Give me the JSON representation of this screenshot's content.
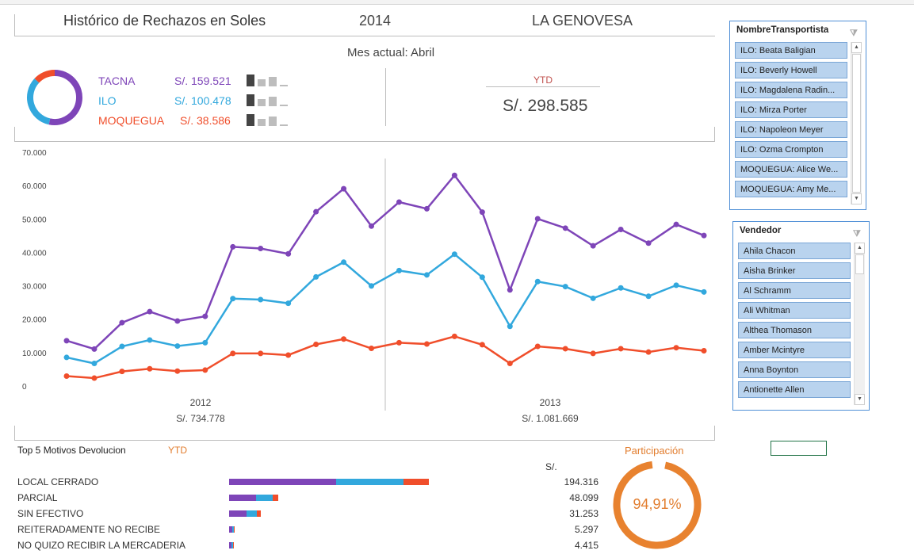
{
  "header": {
    "title": "Histórico de Rechazos en Soles",
    "year": "2014",
    "company": "LA GENOVESA"
  },
  "current_month": "Mes actual: Abril",
  "regions": [
    {
      "name": "TACNA",
      "value": "S/. 159.521",
      "color": "#7e45b8"
    },
    {
      "name": "ILO",
      "value": "S/. 100.478",
      "color": "#32a8dd"
    },
    {
      "name": "MOQUEGUA",
      "value": "S/. 38.586",
      "color": "#f04e2b"
    }
  ],
  "ytd": {
    "label": "YTD",
    "value": "S/. 298.585"
  },
  "chart_data": {
    "type": "line",
    "ylim": [
      0,
      70000
    ],
    "y_ticks": [
      "70.000",
      "60.000",
      "50.000",
      "40.000",
      "30.000",
      "20.000",
      "10.000",
      "0"
    ],
    "groups": [
      {
        "year": "2012",
        "total": "S/. 734.778"
      },
      {
        "year": "2013",
        "total": "S/. 1.081.669"
      }
    ],
    "series": [
      {
        "name": "TACNA",
        "color": "#7e45b8",
        "values": [
          13800,
          11300,
          19200,
          22500,
          19700,
          21100,
          41900,
          41400,
          39800,
          52400,
          59300,
          48100,
          55300,
          53300,
          63300,
          52300,
          29000,
          50300,
          47500,
          42200,
          47100,
          43000,
          48600,
          45300
        ]
      },
      {
        "name": "ILO",
        "color": "#32a8dd",
        "values": [
          8800,
          7000,
          12100,
          14000,
          12200,
          13200,
          26400,
          26100,
          25000,
          32900,
          37300,
          30200,
          34800,
          33500,
          39700,
          32800,
          18100,
          31500,
          30000,
          26500,
          29600,
          27100,
          30400,
          28400
        ]
      },
      {
        "name": "MOQUEGUA",
        "color": "#f04e2b",
        "values": [
          3200,
          2600,
          4600,
          5400,
          4700,
          5000,
          10000,
          10000,
          9500,
          12700,
          14300,
          11500,
          13200,
          12800,
          15100,
          12600,
          7000,
          12100,
          11400,
          10000,
          11400,
          10400,
          11700,
          10800
        ]
      }
    ]
  },
  "slicer_transportista": {
    "title": "NombreTransportista",
    "items": [
      "ILO: Beata Baligian",
      "ILO: Beverly Howell",
      "ILO: Magdalena Radin...",
      "ILO: Mirza Porter",
      "ILO: Napoleon Meyer",
      "ILO: Ozma Crompton",
      "MOQUEGUA: Alice We...",
      "MOQUEGUA: Amy Me..."
    ]
  },
  "slicer_vendedor": {
    "title": "Vendedor",
    "items": [
      "Ahila Chacon",
      "Aisha Brinker",
      "Al Schramm",
      "Ali Whitman",
      "Althea Thomason",
      "Amber Mcintyre",
      "Anna Boynton",
      "Antionette Allen"
    ]
  },
  "top5": {
    "title": "Top 5 Motivos Devolucion",
    "ytd": "YTD",
    "currency": "S/.",
    "rows": [
      {
        "label": "LOCAL CERRADO",
        "value": "194.316",
        "t": 104000,
        "i": 65000,
        "m": 25000
      },
      {
        "label": "PARCIAL",
        "value": "48.099",
        "t": 26000,
        "i": 16000,
        "m": 6000
      },
      {
        "label": "SIN EFECTIVO",
        "value": "31.253",
        "t": 17000,
        "i": 10000,
        "m": 4000
      },
      {
        "label": "REITERADAMENTE NO RECIBE",
        "value": "5.297",
        "t": 3000,
        "i": 1500,
        "m": 600
      },
      {
        "label": "NO QUIZO RECIBIR LA MERCADERIA",
        "value": "4.415",
        "t": 2500,
        "i": 1300,
        "m": 500
      }
    ]
  },
  "participacion": {
    "label": "Participación",
    "value": "94,91%",
    "fraction": 0.9491,
    "color": "#e8822f"
  },
  "donut_share": [
    0.534,
    0.336,
    0.13
  ]
}
